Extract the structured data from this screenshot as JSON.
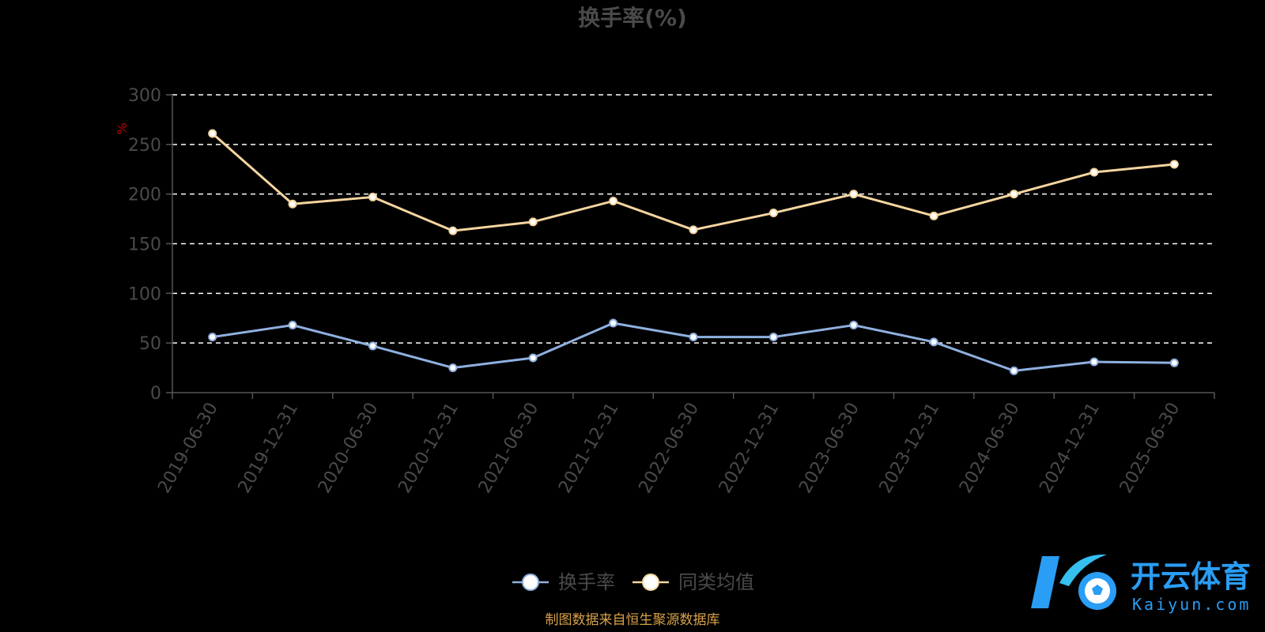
{
  "chart_data": {
    "type": "line",
    "title": "换手率(%)",
    "ylabel": "%",
    "xlabel": "",
    "ylim": [
      0,
      300
    ],
    "yticks": [
      0,
      50,
      100,
      150,
      200,
      250,
      300
    ],
    "grid": true,
    "legend_position": "bottom",
    "categories": [
      "2019-06-30",
      "2019-12-31",
      "2020-06-30",
      "2020-12-31",
      "2021-06-30",
      "2021-12-31",
      "2022-06-30",
      "2022-12-31",
      "2023-06-30",
      "2023-12-31",
      "2024-06-30",
      "2024-12-31",
      "2025-06-30"
    ],
    "series": [
      {
        "name": "换手率",
        "color": "#8fb0e0",
        "values": [
          56,
          68,
          47,
          25,
          35,
          70,
          56,
          56,
          68,
          51,
          22,
          31,
          30
        ]
      },
      {
        "name": "同类均值",
        "color": "#f5d5a0",
        "values": [
          261,
          190,
          197,
          163,
          172,
          193,
          164,
          181,
          200,
          178,
          200,
          222,
          230
        ]
      }
    ]
  },
  "source": "制图数据来自恒生聚源数据库",
  "watermark": {
    "cn": "开云体育",
    "en": "Kaiyun.com"
  },
  "colors": {
    "background": "#000000",
    "axis": "#555555",
    "grid": "#ffffff",
    "text": "#4a4a4a"
  }
}
